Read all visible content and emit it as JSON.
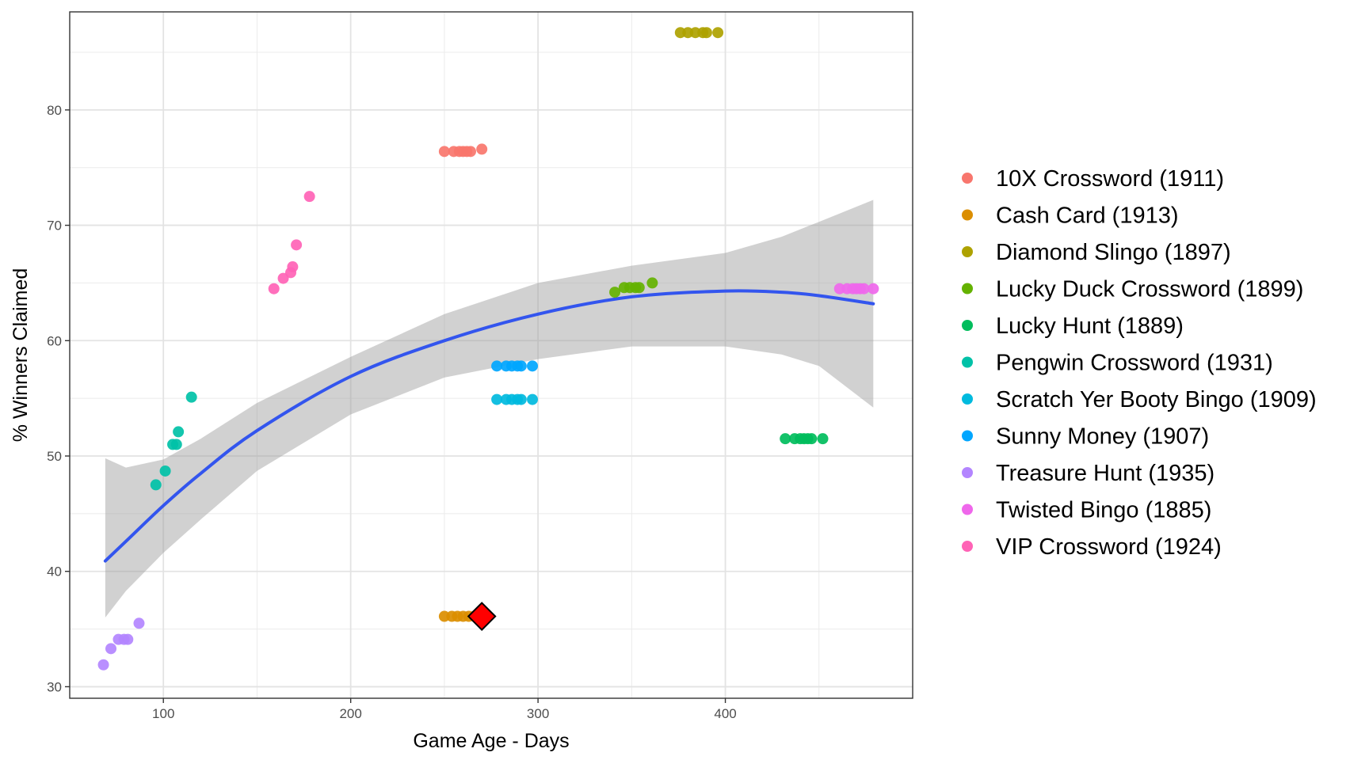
{
  "chart_data": {
    "type": "scatter",
    "title": "",
    "xlabel": "Game Age - Days",
    "ylabel": "% Winners Claimed",
    "xlim": [
      50,
      500
    ],
    "ylim": [
      29,
      88.5
    ],
    "x_ticks": [
      100,
      200,
      300,
      400
    ],
    "y_ticks": [
      30,
      40,
      50,
      60,
      70,
      80
    ],
    "grid": true,
    "legend_position": "right",
    "series": [
      {
        "name": "10X Crossword (1911)",
        "color": "#F8766D",
        "points": [
          [
            250,
            76.4
          ],
          [
            255,
            76.4
          ],
          [
            258,
            76.4
          ],
          [
            260,
            76.4
          ],
          [
            262,
            76.4
          ],
          [
            264,
            76.4
          ],
          [
            270,
            76.6
          ]
        ]
      },
      {
        "name": "Cash Card (1913)",
        "color": "#DB8E00",
        "points": [
          [
            250,
            36.1
          ],
          [
            254,
            36.1
          ],
          [
            257,
            36.1
          ],
          [
            260,
            36.1
          ],
          [
            263,
            36.1
          ],
          [
            266,
            36.1
          ],
          [
            268,
            36.1
          ]
        ]
      },
      {
        "name": "Diamond Slingo (1897)",
        "color": "#AEA200",
        "points": [
          [
            376,
            86.7
          ],
          [
            380,
            86.7
          ],
          [
            384,
            86.7
          ],
          [
            388,
            86.7
          ],
          [
            390,
            86.7
          ],
          [
            396,
            86.7
          ]
        ]
      },
      {
        "name": "Lucky Duck Crossword (1899)",
        "color": "#64B200",
        "points": [
          [
            341,
            64.2
          ],
          [
            346,
            64.6
          ],
          [
            349,
            64.6
          ],
          [
            352,
            64.6
          ],
          [
            354,
            64.6
          ],
          [
            361,
            65.0
          ]
        ]
      },
      {
        "name": "Lucky Hunt (1889)",
        "color": "#00BD5C",
        "points": [
          [
            432,
            51.5
          ],
          [
            437,
            51.5
          ],
          [
            440,
            51.5
          ],
          [
            442,
            51.5
          ],
          [
            444,
            51.5
          ],
          [
            446,
            51.5
          ],
          [
            452,
            51.5
          ]
        ]
      },
      {
        "name": "Pengwin Crossword (1931)",
        "color": "#00C1A7",
        "points": [
          [
            96,
            47.5
          ],
          [
            101,
            48.7
          ],
          [
            105,
            51.0
          ],
          [
            107,
            51.0
          ],
          [
            108,
            52.1
          ],
          [
            115,
            55.1
          ]
        ]
      },
      {
        "name": "Scratch Yer Booty Bingo (1909)",
        "color": "#00BADE",
        "points": [
          [
            278,
            54.9
          ],
          [
            283,
            54.9
          ],
          [
            286,
            54.9
          ],
          [
            289,
            54.9
          ],
          [
            291,
            54.9
          ],
          [
            297,
            54.9
          ]
        ]
      },
      {
        "name": "Sunny Money (1907)",
        "color": "#00A6FF",
        "points": [
          [
            278,
            57.8
          ],
          [
            283,
            57.8
          ],
          [
            286,
            57.8
          ],
          [
            289,
            57.8
          ],
          [
            291,
            57.8
          ],
          [
            297,
            57.8
          ]
        ]
      },
      {
        "name": "Treasure Hunt (1935)",
        "color": "#B385FF",
        "points": [
          [
            68,
            31.9
          ],
          [
            72,
            33.3
          ],
          [
            76,
            34.1
          ],
          [
            79,
            34.1
          ],
          [
            81,
            34.1
          ],
          [
            87,
            35.5
          ]
        ]
      },
      {
        "name": "Twisted Bingo (1885)",
        "color": "#EF67EB",
        "points": [
          [
            461,
            64.5
          ],
          [
            465,
            64.5
          ],
          [
            468,
            64.5
          ],
          [
            470,
            64.5
          ],
          [
            472,
            64.5
          ],
          [
            474,
            64.5
          ],
          [
            479,
            64.5
          ]
        ]
      },
      {
        "name": "VIP Crossword (1924)",
        "color": "#FF63B6",
        "points": [
          [
            159,
            64.5
          ],
          [
            164,
            65.4
          ],
          [
            168,
            65.9
          ],
          [
            169,
            66.4
          ],
          [
            171,
            68.3
          ],
          [
            178,
            72.5
          ]
        ]
      }
    ],
    "highlight_point": {
      "x": 270,
      "y": 36.1,
      "color": "#FF0000",
      "shape": "diamond"
    },
    "trend_line": {
      "color": "#3355EE",
      "band_color": "#999999",
      "x": [
        69,
        80,
        100,
        120,
        150,
        200,
        250,
        300,
        350,
        400,
        430,
        450,
        479
      ],
      "y": [
        40.9,
        42.6,
        45.7,
        48.5,
        52.2,
        56.9,
        60.0,
        62.3,
        63.8,
        64.3,
        64.2,
        63.9,
        63.2
      ],
      "band_lower": [
        36.0,
        38.3,
        41.6,
        44.5,
        48.7,
        53.6,
        56.8,
        58.4,
        59.5,
        59.5,
        58.8,
        57.8,
        54.2
      ],
      "band_upper": [
        49.8,
        49.0,
        49.7,
        51.5,
        54.6,
        58.6,
        62.3,
        65.0,
        66.5,
        67.6,
        69.0,
        70.3,
        72.2
      ]
    }
  }
}
